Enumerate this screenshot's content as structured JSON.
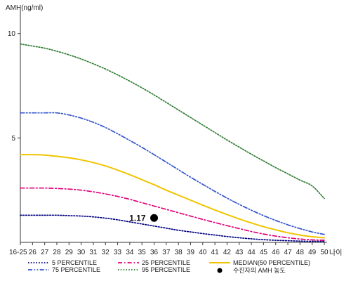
{
  "chart_data": {
    "type": "line",
    "title": "",
    "ylabel": "AMH(ng/ml)",
    "xlabel": "나이",
    "ylim": [
      0,
      11
    ],
    "y_ticks": [
      5,
      10
    ],
    "x_ticks": [
      "16-25",
      "26",
      "27",
      "28",
      "29",
      "30",
      "31",
      "32",
      "33",
      "34",
      "35",
      "36",
      "37",
      "38",
      "39",
      "40",
      "41",
      "42",
      "43",
      "44",
      "45",
      "46",
      "47",
      "48",
      "49",
      "50"
    ],
    "grid": false,
    "legend_position": "bottom",
    "series": [
      {
        "name": "5 PERCENTILE",
        "color": "#000080",
        "dash": "dotted",
        "values": [
          1.3,
          1.3,
          1.3,
          1.3,
          1.28,
          1.26,
          1.22,
          1.16,
          1.08,
          0.98,
          0.88,
          0.78,
          0.68,
          0.58,
          0.5,
          0.42,
          0.35,
          0.28,
          0.22,
          0.17,
          0.13,
          0.1,
          0.08,
          0.06,
          0.05,
          0.05
        ]
      },
      {
        "name": "25 PERCENTILE",
        "color": "#e0007a",
        "dash": "dashdot",
        "values": [
          2.6,
          2.6,
          2.6,
          2.58,
          2.55,
          2.5,
          2.42,
          2.32,
          2.2,
          2.06,
          1.9,
          1.74,
          1.58,
          1.42,
          1.26,
          1.1,
          0.95,
          0.8,
          0.66,
          0.52,
          0.4,
          0.3,
          0.22,
          0.16,
          0.12,
          0.1
        ]
      },
      {
        "name": "MEDIAN(50 PERCENTILE)",
        "color": "#f0c400",
        "dash": "solid",
        "values": [
          4.2,
          4.2,
          4.18,
          4.12,
          4.05,
          3.95,
          3.82,
          3.66,
          3.46,
          3.24,
          3.0,
          2.76,
          2.5,
          2.26,
          2.02,
          1.78,
          1.55,
          1.33,
          1.12,
          0.93,
          0.75,
          0.6,
          0.46,
          0.35,
          0.27,
          0.22
        ]
      },
      {
        "name": "75 PERCENTILE",
        "color": "#3355cc",
        "dash": "dashdotdot",
        "values": [
          6.2,
          6.2,
          6.2,
          6.2,
          6.1,
          5.95,
          5.75,
          5.5,
          5.2,
          4.88,
          4.55,
          4.2,
          3.84,
          3.48,
          3.12,
          2.78,
          2.44,
          2.12,
          1.82,
          1.54,
          1.28,
          1.05,
          0.84,
          0.66,
          0.5,
          0.38
        ]
      },
      {
        "name": "95 PERCENTILE",
        "color": "#2e7d32",
        "dash": "dotted",
        "values": [
          9.5,
          9.4,
          9.3,
          9.15,
          8.98,
          8.78,
          8.55,
          8.3,
          8.02,
          7.72,
          7.4,
          7.06,
          6.7,
          6.34,
          5.98,
          5.62,
          5.26,
          4.9,
          4.56,
          4.22,
          3.9,
          3.58,
          3.28,
          2.98,
          2.7,
          2.1
        ]
      }
    ],
    "marker": {
      "name": "수진자의 AMH 농도",
      "x": "36",
      "y": 1.17,
      "label": "1.17",
      "color": "#000000"
    }
  }
}
